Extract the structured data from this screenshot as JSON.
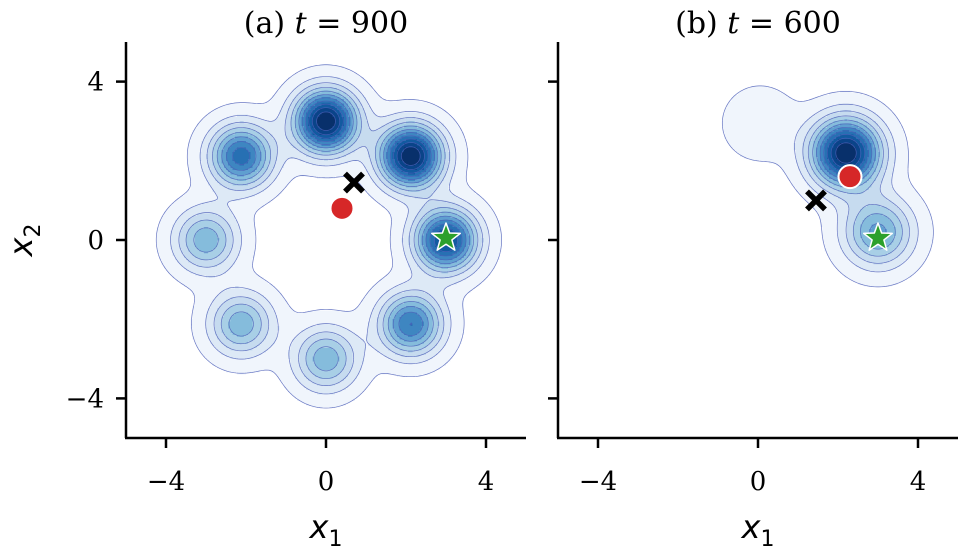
{
  "chart_data": [
    {
      "type": "contour",
      "title": "(a) t = 900",
      "title_parts": {
        "prefix": "(a) ",
        "var": "t",
        "eq": " = ",
        "value": "900"
      },
      "xlabel": "x_1",
      "xlabel_parts": {
        "base": "x",
        "sub": "1"
      },
      "ylabel": "x_2",
      "ylabel_parts": {
        "base": "x",
        "sub": "2"
      },
      "xlim": [
        -5,
        5
      ],
      "ylim": [
        -5,
        5
      ],
      "xticks": [
        -4,
        0,
        4
      ],
      "xtick_labels": [
        "−4",
        "0",
        "4"
      ],
      "yticks": [
        -4,
        0,
        4
      ],
      "ytick_labels": [
        "−4",
        "0",
        "4"
      ],
      "grid": false,
      "density_components": [
        {
          "x": 0.0,
          "y": 3.0,
          "weight": 1.0,
          "sigma": 0.55
        },
        {
          "x": 2.12,
          "y": 2.12,
          "weight": 1.0,
          "sigma": 0.55
        },
        {
          "x": 3.0,
          "y": 0.0,
          "weight": 0.85,
          "sigma": 0.55
        },
        {
          "x": 2.12,
          "y": -2.12,
          "weight": 0.65,
          "sigma": 0.55
        },
        {
          "x": 0.0,
          "y": -3.0,
          "weight": 0.45,
          "sigma": 0.55
        },
        {
          "x": -2.12,
          "y": -2.12,
          "weight": 0.45,
          "sigma": 0.55
        },
        {
          "x": -3.0,
          "y": 0.0,
          "weight": 0.45,
          "sigma": 0.55
        },
        {
          "x": -2.12,
          "y": 2.12,
          "weight": 0.7,
          "sigma": 0.55
        }
      ],
      "markers": [
        {
          "type": "cross",
          "x": 0.7,
          "y": 1.45,
          "color": "#000000"
        },
        {
          "type": "circle",
          "x": 0.4,
          "y": 0.8,
          "color": "#d62728"
        },
        {
          "type": "star",
          "x": 3.0,
          "y": 0.05,
          "color": "#2ca02c"
        }
      ]
    },
    {
      "type": "contour",
      "title": "(b) t = 600",
      "title_parts": {
        "prefix": "(b) ",
        "var": "t",
        "eq": " = ",
        "value": "600"
      },
      "xlabel": "x_1",
      "xlabel_parts": {
        "base": "x",
        "sub": "1"
      },
      "ylabel": "",
      "xlim": [
        -5,
        5
      ],
      "ylim": [
        -5,
        5
      ],
      "xticks": [
        -4,
        0,
        4
      ],
      "xtick_labels": [
        "−4",
        "0",
        "4"
      ],
      "yticks": [
        -4,
        0,
        4
      ],
      "ytick_labels": [],
      "grid": false,
      "density_components": [
        {
          "x": 2.2,
          "y": 2.2,
          "weight": 1.0,
          "sigma": 0.6
        },
        {
          "x": 3.0,
          "y": 0.2,
          "weight": 0.5,
          "sigma": 0.6
        },
        {
          "x": 0.05,
          "y": 2.95,
          "weight": 0.12,
          "sigma": 0.6
        }
      ],
      "markers": [
        {
          "type": "cross",
          "x": 1.45,
          "y": 1.0,
          "color": "#000000"
        },
        {
          "type": "circle",
          "x": 2.3,
          "y": 1.6,
          "color": "#d62728"
        },
        {
          "type": "star",
          "x": 3.0,
          "y": 0.05,
          "color": "#2ca02c"
        }
      ]
    }
  ],
  "colors": {
    "contour_ramp": [
      "#f0f5fc",
      "#dde9f6",
      "#c6dbef",
      "#a8cfe6",
      "#85bcdc",
      "#5f9fd0",
      "#3e86c1",
      "#2770b3",
      "#125aa0",
      "#0a4489",
      "#08306b"
    ],
    "contour_line": "#4d5fb8",
    "marker_edge": "#ffffff"
  }
}
